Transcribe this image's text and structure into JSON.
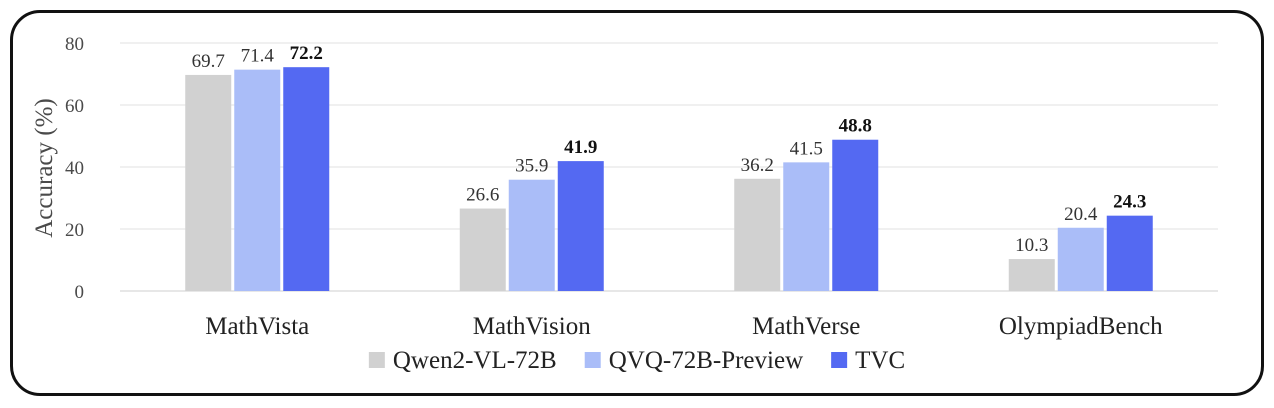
{
  "chart_data": {
    "type": "bar",
    "ylabel": "Accuracy (%)",
    "ylim": [
      0,
      80
    ],
    "yticks": [
      0,
      20,
      40,
      60,
      80
    ],
    "grid": true,
    "legend_position": "bottom",
    "categories": [
      "MathVista",
      "MathVision",
      "MathVerse",
      "OlympiadBench"
    ],
    "series": [
      {
        "name": "Qwen2-VL-72B",
        "color": "#d1d1d1",
        "values": [
          69.7,
          26.6,
          36.2,
          10.3
        ],
        "labels": [
          "69.7",
          "26.6",
          "36.2",
          "10.3"
        ],
        "bold_labels": false
      },
      {
        "name": "QVQ-72B-Preview",
        "color": "#aabdf8",
        "values": [
          71.4,
          35.9,
          41.5,
          20.4
        ],
        "labels": [
          "71.4",
          "35.9",
          "41.5",
          "20.4"
        ],
        "bold_labels": false
      },
      {
        "name": "TVC",
        "color": "#5469f2",
        "values": [
          72.2,
          41.9,
          48.8,
          24.3
        ],
        "labels": [
          "72.2",
          "41.9",
          "48.8",
          "24.3"
        ],
        "bold_labels": true
      }
    ]
  }
}
